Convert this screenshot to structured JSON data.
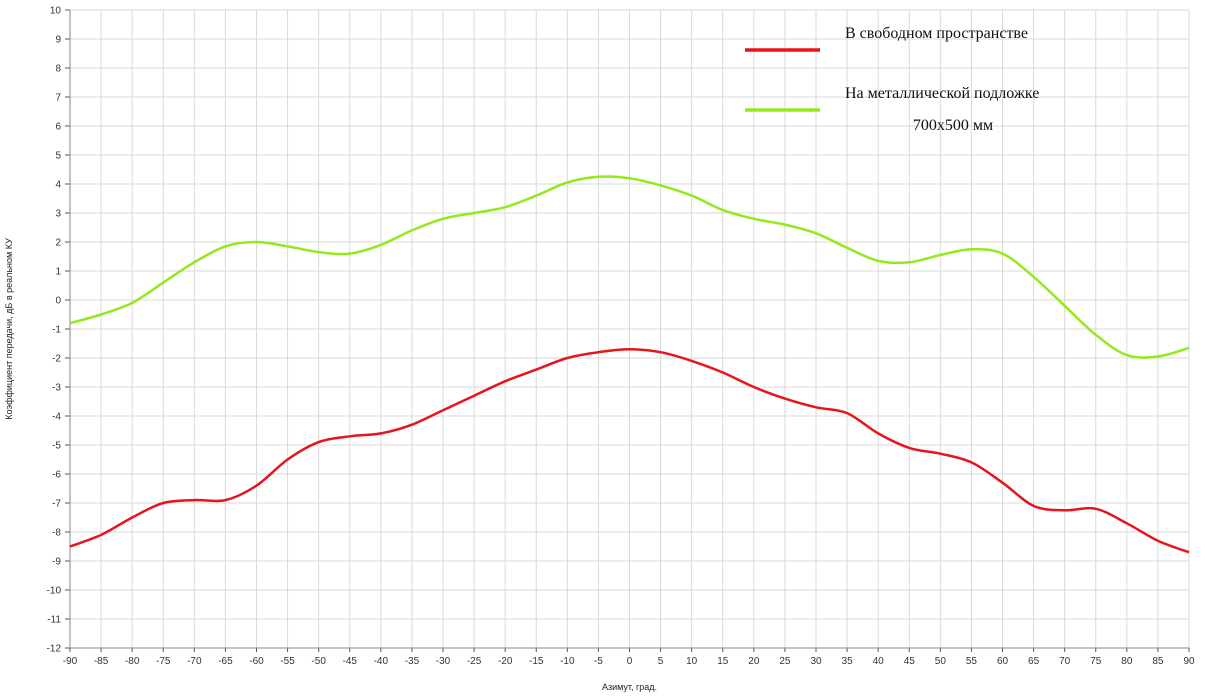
{
  "chart_data": {
    "type": "line",
    "title": "",
    "xlabel": "Азимут, град.",
    "ylabel": "Коэффициент передачи, дБ в реальном КУ",
    "xlim": [
      -90,
      90
    ],
    "ylim": [
      -12,
      10
    ],
    "xticks": [
      -90,
      -85,
      -80,
      -75,
      -70,
      -65,
      -60,
      -55,
      -50,
      -45,
      -40,
      -35,
      -30,
      -25,
      -20,
      -15,
      -10,
      -5,
      0,
      5,
      10,
      15,
      20,
      25,
      30,
      35,
      40,
      45,
      50,
      55,
      60,
      65,
      70,
      75,
      80,
      85,
      90
    ],
    "yticks": [
      -12,
      -11,
      -10,
      -9,
      -8,
      -7,
      -6,
      -5,
      -4,
      -3,
      -2,
      -1,
      0,
      1,
      2,
      3,
      4,
      5,
      6,
      7,
      8,
      9,
      10
    ],
    "grid": true,
    "legend_position": "top-right",
    "x": [
      -90,
      -85,
      -80,
      -75,
      -70,
      -65,
      -60,
      -55,
      -50,
      -45,
      -40,
      -35,
      -30,
      -25,
      -20,
      -15,
      -10,
      -5,
      0,
      5,
      10,
      15,
      20,
      25,
      30,
      35,
      40,
      45,
      50,
      55,
      60,
      65,
      70,
      75,
      80,
      85,
      90
    ],
    "series": [
      {
        "name": "В свободном пространстве",
        "name_lines": [
          "В свободном пространстве"
        ],
        "color": "#e8141c",
        "values": [
          -8.5,
          -8.1,
          -7.5,
          -7.0,
          -6.9,
          -6.9,
          -6.4,
          -5.5,
          -4.9,
          -4.7,
          -4.6,
          -4.3,
          -3.8,
          -3.3,
          -2.8,
          -2.4,
          -2.0,
          -1.8,
          -1.7,
          -1.8,
          -2.1,
          -2.5,
          -3.0,
          -3.4,
          -3.7,
          -3.9,
          -4.6,
          -5.1,
          -5.3,
          -5.6,
          -6.3,
          -7.1,
          -7.25,
          -7.2,
          -7.7,
          -8.3,
          -8.7
        ]
      },
      {
        "name": "На металлической подложке 700х500 мм",
        "name_lines": [
          "На металлической подложке",
          "700х500 мм"
        ],
        "color": "#95e81c",
        "values": [
          -0.8,
          -0.5,
          -0.1,
          0.6,
          1.3,
          1.85,
          2.0,
          1.85,
          1.65,
          1.6,
          1.9,
          2.4,
          2.8,
          3.0,
          3.2,
          3.6,
          4.05,
          4.25,
          4.2,
          3.95,
          3.6,
          3.1,
          2.8,
          2.6,
          2.3,
          1.8,
          1.35,
          1.3,
          1.55,
          1.75,
          1.6,
          0.8,
          -0.2,
          -1.2,
          -1.9,
          -1.95,
          -1.65
        ]
      }
    ]
  }
}
